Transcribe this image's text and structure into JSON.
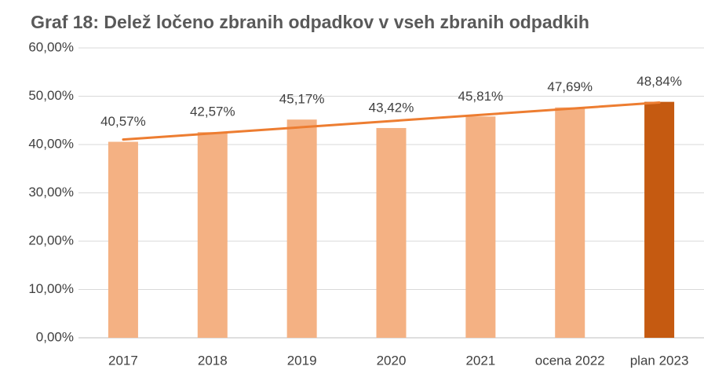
{
  "chart_data": {
    "type": "bar",
    "title": "Graf 18: Delež ločeno zbranih odpadkov v vseh zbranih odpadkih",
    "categories": [
      "2017",
      "2018",
      "2019",
      "2020",
      "2021",
      "ocena 2022",
      "plan 2023"
    ],
    "values": [
      40.57,
      42.57,
      45.17,
      43.42,
      45.81,
      47.69,
      48.84
    ],
    "value_labels": [
      "40,57%",
      "42,57%",
      "45,17%",
      "43,42%",
      "45,81%",
      "47,69%",
      "48,84%"
    ],
    "colors": [
      "#f4b183",
      "#f4b183",
      "#f4b183",
      "#f4b183",
      "#f4b183",
      "#f4b183",
      "#c55a11"
    ],
    "ylim": [
      0,
      60
    ],
    "yticks": [
      {
        "value": 0,
        "label": "0,00%"
      },
      {
        "value": 10,
        "label": "10,00%"
      },
      {
        "value": 20,
        "label": "20,00%"
      },
      {
        "value": 30,
        "label": "30,00%"
      },
      {
        "value": 40,
        "label": "40,00%"
      },
      {
        "value": 50,
        "label": "50,00%"
      },
      {
        "value": 60,
        "label": "60,00%"
      }
    ],
    "grid": true,
    "trendline": {
      "type": "linear",
      "color": "#ed7d31"
    }
  }
}
